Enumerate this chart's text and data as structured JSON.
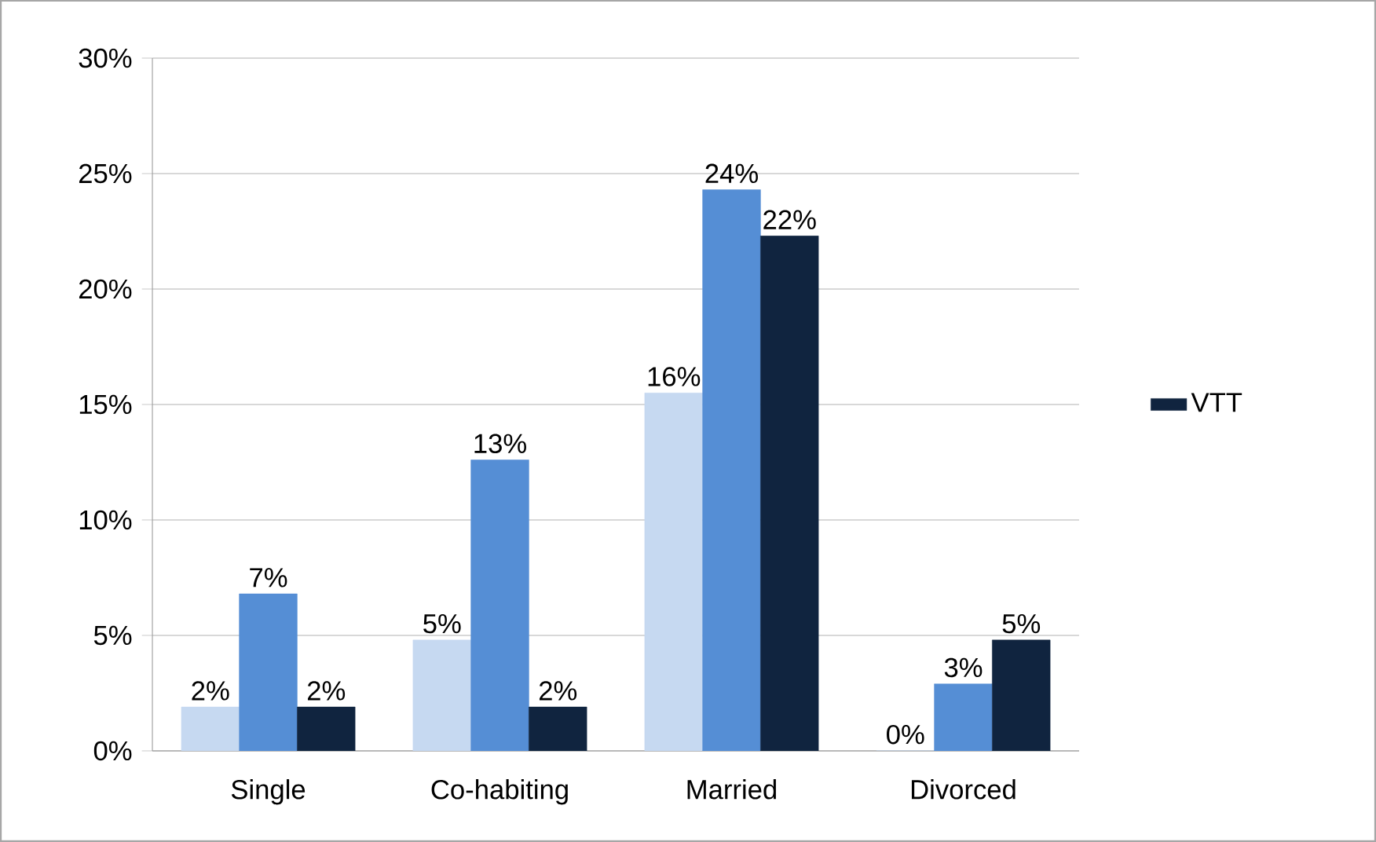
{
  "chart_data": {
    "type": "bar",
    "categories": [
      "Single",
      "Co-habiting",
      "Married",
      "Divorced"
    ],
    "series": [
      {
        "color": "#c6d9f1",
        "values": [
          1.9,
          4.8,
          15.5,
          0
        ],
        "value_labels": [
          "2%",
          "5%",
          "16%",
          "0%"
        ]
      },
      {
        "color": "#558ed5",
        "values": [
          6.8,
          12.6,
          24.3,
          2.9
        ],
        "value_labels": [
          "7%",
          "13%",
          "24%",
          "3%"
        ]
      },
      {
        "name": "VTT",
        "color": "#10243f",
        "values": [
          1.9,
          1.9,
          22.3,
          4.8
        ],
        "value_labels": [
          "2%",
          "2%",
          "22%",
          "5%"
        ]
      }
    ],
    "ylim": [
      0,
      30
    ],
    "yticks": [
      {
        "value": 0,
        "label": "0%"
      },
      {
        "value": 5,
        "label": "5%"
      },
      {
        "value": 10,
        "label": "10%"
      },
      {
        "value": 15,
        "label": "15%"
      },
      {
        "value": 20,
        "label": "20%"
      },
      {
        "value": 25,
        "label": "25%"
      },
      {
        "value": 30,
        "label": "30%"
      }
    ],
    "grid": "y",
    "legend": "right"
  }
}
